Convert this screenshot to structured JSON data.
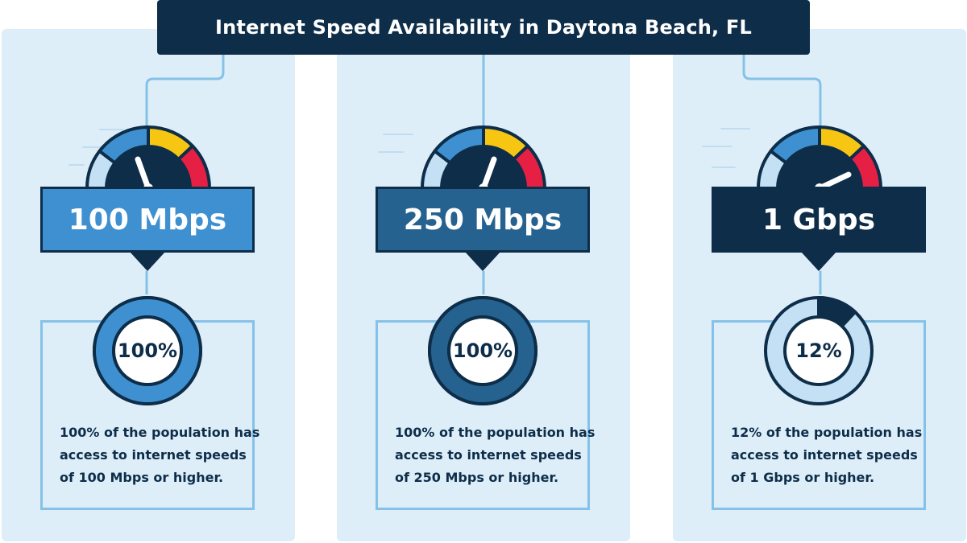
{
  "title": "Internet Speed Availability in Daytona Beach, FL",
  "colors": {
    "navy": "#0d2d49",
    "panel_bg": "#ddeef9",
    "line": "#86c1e8",
    "gauge_light": "#c3e0f4",
    "gauge_blue": "#3e90d0",
    "gauge_yellow": "#f6c613",
    "gauge_red": "#e61f45"
  },
  "columns": [
    {
      "speed": "100 Mbps",
      "speed_box_color": "#3e90d0",
      "ring_color": "#3e90d0",
      "percent_label": "100%",
      "percent_value": 100,
      "description": [
        "100% of the population has",
        "access to internet speeds",
        "of 100 Mbps or higher."
      ]
    },
    {
      "speed": "250 Mbps",
      "speed_box_color": "#26628f",
      "ring_color": "#26628f",
      "percent_label": "100%",
      "percent_value": 100,
      "description": [
        "100% of the population has",
        "access to internet speeds",
        "of 250 Mbps or higher."
      ]
    },
    {
      "speed": "1 Gbps",
      "speed_box_color": "#0d2d49",
      "ring_color": "#0d2d49",
      "percent_label": "12%",
      "percent_value": 12,
      "description": [
        "12% of the population has",
        "access to internet speeds",
        "of 1 Gbps or higher."
      ]
    }
  ]
}
